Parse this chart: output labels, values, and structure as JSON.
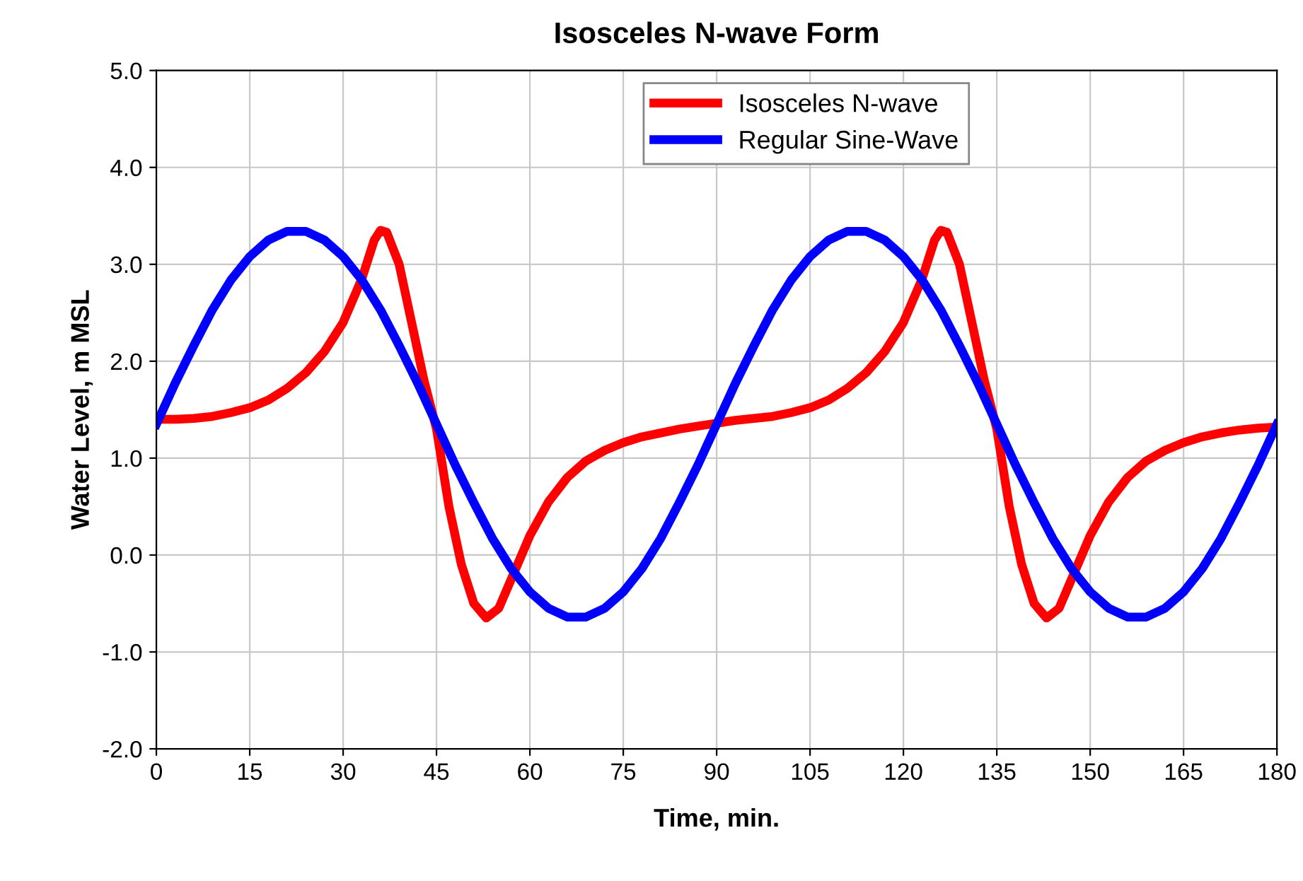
{
  "chart_data": {
    "type": "line",
    "title": "Isosceles N-wave Form",
    "xlabel": "Time, min.",
    "ylabel": "Water Level, m MSL",
    "xlim": [
      0,
      180
    ],
    "xticks": [
      0,
      15,
      30,
      45,
      60,
      75,
      90,
      105,
      120,
      135,
      150,
      165,
      180
    ],
    "ylim": [
      -2,
      5
    ],
    "yticks": [
      {
        "value": -2,
        "label": "-2.0"
      },
      {
        "value": -1,
        "label": "-1.0"
      },
      {
        "value": 0,
        "label": "0.0"
      },
      {
        "value": 1,
        "label": "1.0"
      },
      {
        "value": 2,
        "label": "2.0"
      },
      {
        "value": 3,
        "label": "3.0"
      },
      {
        "value": 4,
        "label": "4.0"
      },
      {
        "value": 5,
        "label": "5.0"
      }
    ],
    "grid": true,
    "legend": "top",
    "marker": "none",
    "line_style": "solid",
    "series": [
      {
        "name": "Isosceles N-wave",
        "color": "#ff0000",
        "x": [
          0,
          3,
          6,
          9,
          12,
          15,
          18,
          21,
          24,
          27,
          30,
          33,
          35,
          36,
          37,
          39,
          41,
          43,
          45,
          47,
          49,
          51,
          53,
          55,
          57,
          60,
          63,
          66,
          69,
          72,
          75,
          78,
          81,
          84,
          87,
          90,
          93,
          96,
          99,
          102,
          105,
          108,
          111,
          114,
          117,
          120,
          123,
          125,
          126,
          127,
          129,
          131,
          133,
          135,
          137,
          139,
          141,
          143,
          145,
          147,
          150,
          153,
          156,
          159,
          162,
          165,
          168,
          171,
          174,
          177,
          180
        ],
        "values": [
          1.4,
          1.4,
          1.41,
          1.43,
          1.47,
          1.52,
          1.6,
          1.72,
          1.88,
          2.1,
          2.4,
          2.85,
          3.25,
          3.35,
          3.33,
          3.0,
          2.4,
          1.8,
          1.3,
          0.5,
          -0.1,
          -0.5,
          -0.65,
          -0.55,
          -0.25,
          0.2,
          0.55,
          0.8,
          0.97,
          1.08,
          1.16,
          1.22,
          1.26,
          1.3,
          1.33,
          1.36,
          1.39,
          1.41,
          1.43,
          1.47,
          1.52,
          1.6,
          1.72,
          1.88,
          2.1,
          2.4,
          2.85,
          3.25,
          3.35,
          3.33,
          3.0,
          2.4,
          1.8,
          1.3,
          0.5,
          -0.1,
          -0.5,
          -0.65,
          -0.55,
          -0.25,
          0.2,
          0.55,
          0.8,
          0.97,
          1.08,
          1.16,
          1.22,
          1.26,
          1.29,
          1.31,
          1.32
        ]
      },
      {
        "name": "Regular Sine-Wave",
        "color": "#0000ff",
        "x": [
          0,
          3,
          6,
          9,
          12,
          15,
          18,
          21,
          24,
          27,
          30,
          33,
          36,
          39,
          42,
          45,
          48,
          51,
          54,
          57,
          60,
          63,
          66,
          69,
          72,
          75,
          78,
          81,
          84,
          87,
          90,
          93,
          96,
          99,
          102,
          105,
          108,
          111,
          114,
          117,
          120,
          123,
          126,
          129,
          132,
          135,
          138,
          141,
          144,
          147,
          150,
          153,
          156,
          159,
          162,
          165,
          168,
          171,
          174,
          177,
          180
        ],
        "values": [
          1.35,
          1.77,
          2.16,
          2.53,
          2.84,
          3.08,
          3.25,
          3.34,
          3.34,
          3.25,
          3.08,
          2.84,
          2.53,
          2.16,
          1.77,
          1.35,
          0.93,
          0.54,
          0.17,
          -0.14,
          -0.38,
          -0.55,
          -0.64,
          -0.64,
          -0.55,
          -0.38,
          -0.14,
          0.17,
          0.54,
          0.93,
          1.35,
          1.77,
          2.16,
          2.53,
          2.84,
          3.08,
          3.25,
          3.34,
          3.34,
          3.25,
          3.08,
          2.84,
          2.53,
          2.16,
          1.77,
          1.35,
          0.93,
          0.54,
          0.17,
          -0.14,
          -0.38,
          -0.55,
          -0.64,
          -0.64,
          -0.55,
          -0.38,
          -0.14,
          0.17,
          0.54,
          0.93,
          1.35
        ]
      }
    ]
  }
}
